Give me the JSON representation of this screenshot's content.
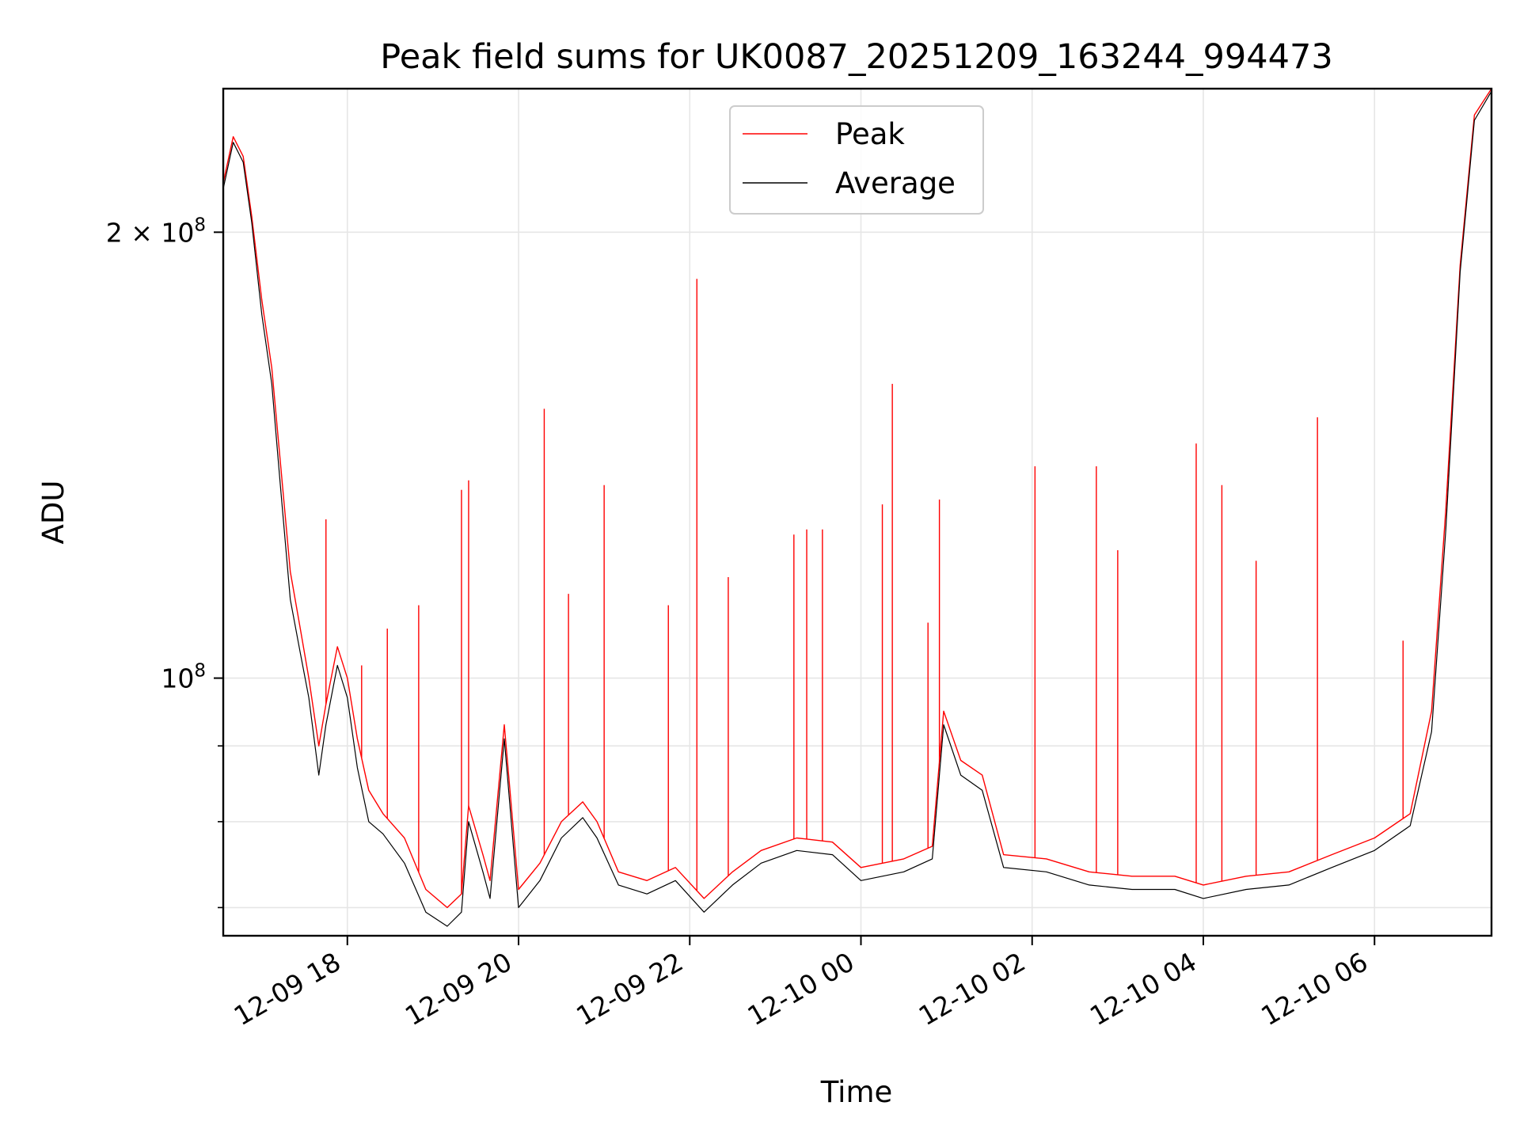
{
  "chart_data": {
    "type": "line",
    "title": "Peak field sums for UK0087_20251209_163244_994473",
    "xlabel": "Time",
    "ylabel": "ADU",
    "yscale": "log",
    "grid": true,
    "legend_position": "top-center",
    "xlim": [
      "2025-12-09 16:33",
      "2025-12-10 07:22"
    ],
    "ylim": [
      67000000,
      250000000
    ],
    "x_ticks": [
      {
        "value": "2025-12-09 18:00",
        "label": "12-09 18"
      },
      {
        "value": "2025-12-09 20:00",
        "label": "12-09 20"
      },
      {
        "value": "2025-12-09 22:00",
        "label": "12-09 22"
      },
      {
        "value": "2025-12-10 00:00",
        "label": "12-10 00"
      },
      {
        "value": "2025-12-10 02:00",
        "label": "12-10 02"
      },
      {
        "value": "2025-12-10 04:00",
        "label": "12-10 04"
      },
      {
        "value": "2025-12-10 06:00",
        "label": "12-10 06"
      }
    ],
    "y_ticks": [
      {
        "value": 100000000,
        "label_base": "10",
        "label_exp": "8",
        "label_coef": ""
      },
      {
        "value": 200000000,
        "label_base": "10",
        "label_exp": "8",
        "label_coef": "2 × "
      }
    ],
    "y_minor_ticks": [
      70000000,
      80000000,
      90000000
    ],
    "series": [
      {
        "name": "Peak",
        "color": "#ff0000",
        "points": [
          [
            "2025-12-09 16:33",
            216000000
          ],
          [
            "2025-12-09 16:40",
            232000000
          ],
          [
            "2025-12-09 16:47",
            225000000
          ],
          [
            "2025-12-09 16:53",
            205000000
          ],
          [
            "2025-12-09 17:00",
            180000000
          ],
          [
            "2025-12-09 17:07",
            162000000
          ],
          [
            "2025-12-09 17:13",
            140000000
          ],
          [
            "2025-12-09 17:20",
            118000000
          ],
          [
            "2025-12-09 17:27",
            108000000
          ],
          [
            "2025-12-09 17:33",
            100000000
          ],
          [
            "2025-12-09 17:40",
            90000000
          ],
          [
            "2025-12-09 17:45",
            96000000
          ],
          [
            "2025-12-09 17:53",
            105000000
          ],
          [
            "2025-12-09 18:00",
            100000000
          ],
          [
            "2025-12-09 18:07",
            91000000
          ],
          [
            "2025-12-09 18:15",
            84000000
          ],
          [
            "2025-12-09 18:25",
            81000000
          ],
          [
            "2025-12-09 18:40",
            78000000
          ],
          [
            "2025-12-09 18:55",
            72000000
          ],
          [
            "2025-12-09 19:10",
            70000000
          ],
          [
            "2025-12-09 19:20",
            71500000
          ],
          [
            "2025-12-09 19:25",
            82000000
          ],
          [
            "2025-12-09 19:35",
            76000000
          ],
          [
            "2025-12-09 19:40",
            73000000
          ],
          [
            "2025-12-09 19:50",
            93000000
          ],
          [
            "2025-12-09 20:00",
            72000000
          ],
          [
            "2025-12-09 20:15",
            75000000
          ],
          [
            "2025-12-09 20:30",
            80000000
          ],
          [
            "2025-12-09 20:45",
            82500000
          ],
          [
            "2025-12-09 20:55",
            80000000
          ],
          [
            "2025-12-09 21:10",
            74000000
          ],
          [
            "2025-12-09 21:30",
            73000000
          ],
          [
            "2025-12-09 21:50",
            74500000
          ],
          [
            "2025-12-09 22:10",
            71000000
          ],
          [
            "2025-12-09 22:30",
            74000000
          ],
          [
            "2025-12-09 22:50",
            76500000
          ],
          [
            "2025-12-09 23:15",
            78000000
          ],
          [
            "2025-12-09 23:40",
            77500000
          ],
          [
            "2025-12-10 00:00",
            74500000
          ],
          [
            "2025-12-10 00:30",
            75500000
          ],
          [
            "2025-12-10 00:50",
            77000000
          ],
          [
            "2025-12-10 00:58",
            95000000
          ],
          [
            "2025-12-10 01:10",
            88000000
          ],
          [
            "2025-12-10 01:25",
            86000000
          ],
          [
            "2025-12-10 01:40",
            76000000
          ],
          [
            "2025-12-10 02:10",
            75500000
          ],
          [
            "2025-12-10 02:40",
            74000000
          ],
          [
            "2025-12-10 03:10",
            73500000
          ],
          [
            "2025-12-10 03:40",
            73500000
          ],
          [
            "2025-12-10 04:00",
            72500000
          ],
          [
            "2025-12-10 04:30",
            73500000
          ],
          [
            "2025-12-10 05:00",
            74000000
          ],
          [
            "2025-12-10 05:30",
            76000000
          ],
          [
            "2025-12-10 06:00",
            78000000
          ],
          [
            "2025-12-10 06:25",
            81000000
          ],
          [
            "2025-12-10 06:40",
            95000000
          ],
          [
            "2025-12-10 06:50",
            130000000
          ],
          [
            "2025-12-10 07:00",
            190000000
          ],
          [
            "2025-12-10 07:10",
            240000000
          ],
          [
            "2025-12-10 07:22",
            250000000
          ]
        ],
        "spikes": [
          [
            "2025-12-09 17:45",
            128000000
          ],
          [
            "2025-12-09 18:10",
            102000000
          ],
          [
            "2025-12-09 18:28",
            108000000
          ],
          [
            "2025-12-09 18:50",
            112000000
          ],
          [
            "2025-12-09 19:20",
            134000000
          ],
          [
            "2025-12-09 19:25",
            136000000
          ],
          [
            "2025-12-09 20:18",
            152000000
          ],
          [
            "2025-12-09 20:35",
            114000000
          ],
          [
            "2025-12-09 21:00",
            135000000
          ],
          [
            "2025-12-09 21:45",
            112000000
          ],
          [
            "2025-12-09 22:05",
            186000000
          ],
          [
            "2025-12-09 22:27",
            117000000
          ],
          [
            "2025-12-09 23:13",
            125000000
          ],
          [
            "2025-12-09 23:22",
            126000000
          ],
          [
            "2025-12-09 23:33",
            126000000
          ],
          [
            "2025-12-10 00:15",
            131000000
          ],
          [
            "2025-12-10 00:22",
            158000000
          ],
          [
            "2025-12-10 00:47",
            109000000
          ],
          [
            "2025-12-10 00:55",
            132000000
          ],
          [
            "2025-12-10 02:02",
            139000000
          ],
          [
            "2025-12-10 02:45",
            139000000
          ],
          [
            "2025-12-10 03:00",
            122000000
          ],
          [
            "2025-12-10 03:55",
            144000000
          ],
          [
            "2025-12-10 04:13",
            135000000
          ],
          [
            "2025-12-10 04:37",
            120000000
          ],
          [
            "2025-12-10 05:20",
            150000000
          ],
          [
            "2025-12-10 06:20",
            106000000
          ]
        ]
      },
      {
        "name": "Average",
        "color": "#000000",
        "points": [
          [
            "2025-12-09 16:33",
            214000000
          ],
          [
            "2025-12-09 16:40",
            230000000
          ],
          [
            "2025-12-09 16:47",
            223000000
          ],
          [
            "2025-12-09 16:53",
            203000000
          ],
          [
            "2025-12-09 17:00",
            176000000
          ],
          [
            "2025-12-09 17:07",
            158000000
          ],
          [
            "2025-12-09 17:13",
            135000000
          ],
          [
            "2025-12-09 17:20",
            113000000
          ],
          [
            "2025-12-09 17:27",
            104000000
          ],
          [
            "2025-12-09 17:33",
            97000000
          ],
          [
            "2025-12-09 17:40",
            86000000
          ],
          [
            "2025-12-09 17:45",
            93000000
          ],
          [
            "2025-12-09 17:53",
            102000000
          ],
          [
            "2025-12-09 18:00",
            97000000
          ],
          [
            "2025-12-09 18:07",
            87000000
          ],
          [
            "2025-12-09 18:15",
            80000000
          ],
          [
            "2025-12-09 18:25",
            78500000
          ],
          [
            "2025-12-09 18:40",
            75000000
          ],
          [
            "2025-12-09 18:55",
            69500000
          ],
          [
            "2025-12-09 19:10",
            68000000
          ],
          [
            "2025-12-09 19:20",
            69500000
          ],
          [
            "2025-12-09 19:25",
            80000000
          ],
          [
            "2025-12-09 19:35",
            74000000
          ],
          [
            "2025-12-09 19:40",
            71000000
          ],
          [
            "2025-12-09 19:50",
            91000000
          ],
          [
            "2025-12-09 20:00",
            70000000
          ],
          [
            "2025-12-09 20:15",
            73000000
          ],
          [
            "2025-12-09 20:30",
            78000000
          ],
          [
            "2025-12-09 20:45",
            80500000
          ],
          [
            "2025-12-09 20:55",
            78000000
          ],
          [
            "2025-12-09 21:10",
            72500000
          ],
          [
            "2025-12-09 21:30",
            71500000
          ],
          [
            "2025-12-09 21:50",
            73000000
          ],
          [
            "2025-12-09 22:10",
            69500000
          ],
          [
            "2025-12-09 22:30",
            72500000
          ],
          [
            "2025-12-09 22:50",
            75000000
          ],
          [
            "2025-12-09 23:15",
            76500000
          ],
          [
            "2025-12-09 23:40",
            76000000
          ],
          [
            "2025-12-10 00:00",
            73000000
          ],
          [
            "2025-12-10 00:30",
            74000000
          ],
          [
            "2025-12-10 00:50",
            75500000
          ],
          [
            "2025-12-10 00:58",
            93000000
          ],
          [
            "2025-12-10 01:10",
            86000000
          ],
          [
            "2025-12-10 01:25",
            84000000
          ],
          [
            "2025-12-10 01:40",
            74500000
          ],
          [
            "2025-12-10 02:10",
            74000000
          ],
          [
            "2025-12-10 02:40",
            72500000
          ],
          [
            "2025-12-10 03:10",
            72000000
          ],
          [
            "2025-12-10 03:40",
            72000000
          ],
          [
            "2025-12-10 04:00",
            71000000
          ],
          [
            "2025-12-10 04:30",
            72000000
          ],
          [
            "2025-12-10 05:00",
            72500000
          ],
          [
            "2025-12-10 05:30",
            74500000
          ],
          [
            "2025-12-10 06:00",
            76500000
          ],
          [
            "2025-12-10 06:25",
            79500000
          ],
          [
            "2025-12-10 06:40",
            92000000
          ],
          [
            "2025-12-10 06:50",
            126000000
          ],
          [
            "2025-12-10 07:00",
            188000000
          ],
          [
            "2025-12-10 07:10",
            238000000
          ],
          [
            "2025-12-10 07:22",
            249000000
          ]
        ]
      }
    ]
  }
}
